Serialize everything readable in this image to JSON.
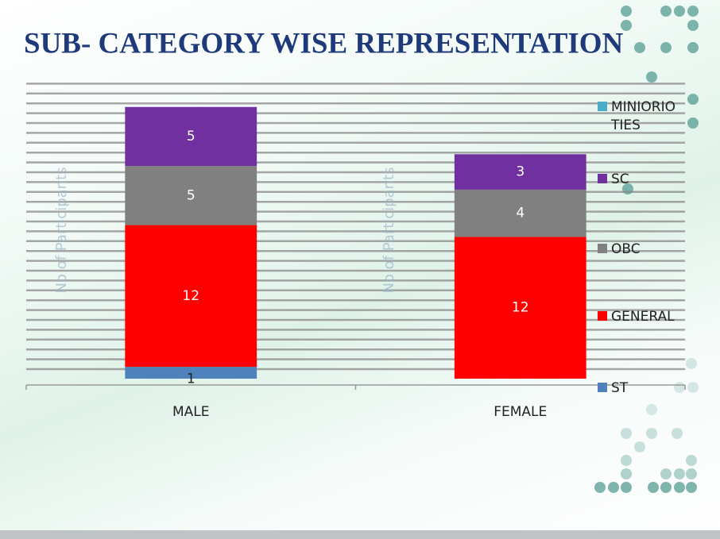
{
  "chart_data": {
    "type": "stacked-bar",
    "title": "SUB- CATEGORY WISE REPRESENTATION",
    "y_label": "No of Participants",
    "categories": [
      "MALE",
      "FEMALE"
    ],
    "series": [
      {
        "name": "ST",
        "color": "#4f81bd",
        "values": [
          1,
          null
        ]
      },
      {
        "name": "GENERAL",
        "color": "#ff0000",
        "values": [
          12,
          12
        ]
      },
      {
        "name": "OBC",
        "color": "#808080",
        "values": [
          5,
          4
        ]
      },
      {
        "name": "SC",
        "color": "#7030a0",
        "values": [
          5,
          3
        ]
      },
      {
        "name": "MINIORIOTIES",
        "color": "#4bacc6",
        "values": [
          null,
          null
        ]
      }
    ],
    "ylim": [
      0,
      25
    ]
  }
}
